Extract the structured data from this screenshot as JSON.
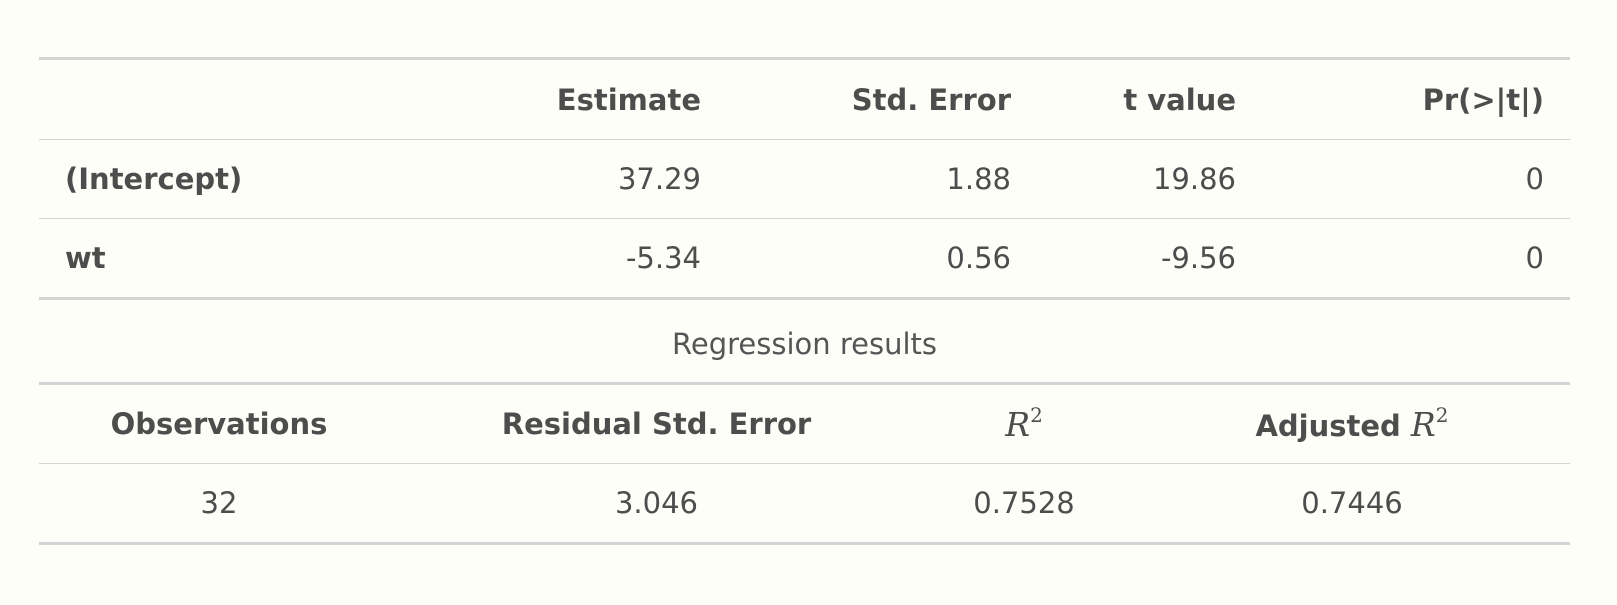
{
  "coefficients": {
    "headers": [
      "",
      "Estimate",
      "Std. Error",
      "t value",
      "Pr(>|t|)"
    ],
    "rows": [
      {
        "term": "(Intercept)",
        "estimate": "37.29",
        "std_error": "1.88",
        "t_value": "19.86",
        "p_value": "0"
      },
      {
        "term": "wt",
        "estimate": "-5.34",
        "std_error": "0.56",
        "t_value": "-9.56",
        "p_value": "0"
      }
    ]
  },
  "caption": "Regression results",
  "summary": {
    "headers": {
      "observations": "Observations",
      "residual_se": "Residual Std. Error",
      "r2_symbol": "R",
      "r2_exponent": "2",
      "adj_r2_prefix": "Adjusted",
      "adj_r2_symbol": "R",
      "adj_r2_exponent": "2"
    },
    "values": {
      "observations": "32",
      "residual_se": "3.046",
      "r2": "0.7528",
      "adj_r2": "0.7446"
    }
  }
}
